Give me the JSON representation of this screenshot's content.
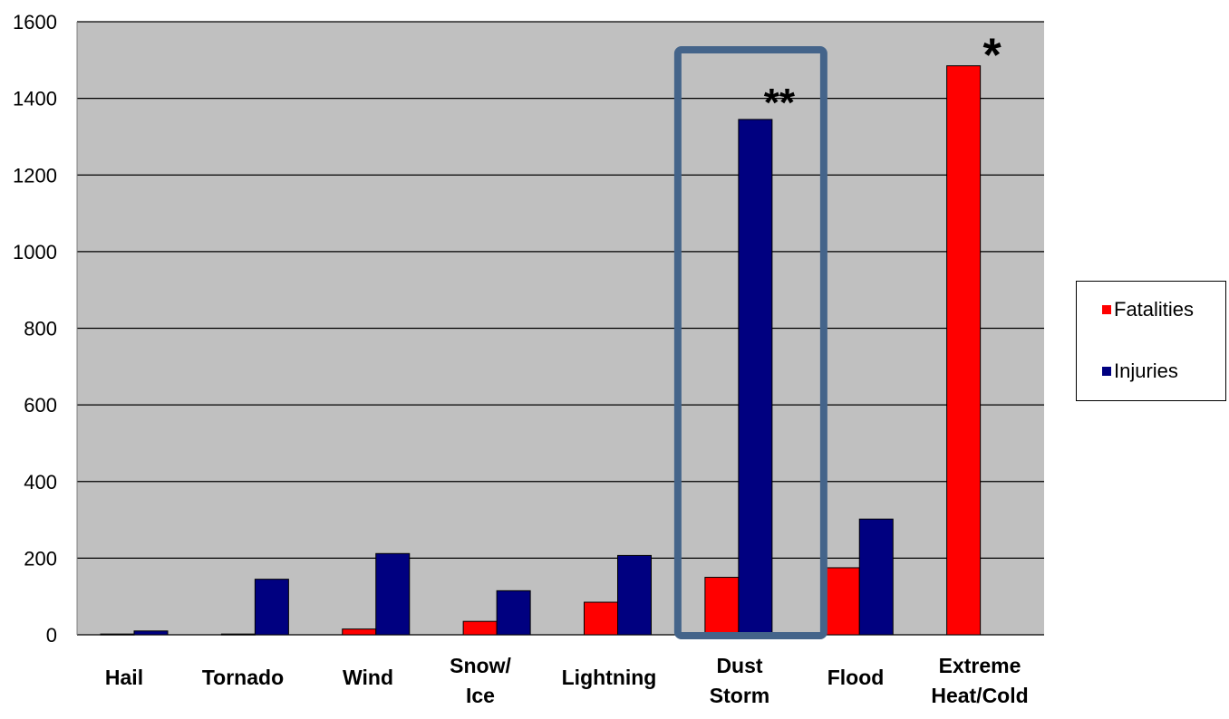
{
  "chart_data": {
    "type": "bar",
    "categories": [
      [
        "Hail"
      ],
      [
        "Tornado"
      ],
      [
        "Wind"
      ],
      [
        "Snow/",
        "Ice"
      ],
      [
        "Lightning"
      ],
      [
        "Dust",
        "Storm"
      ],
      [
        "Flood"
      ],
      [
        "Extreme",
        "Heat/Cold"
      ]
    ],
    "series": [
      {
        "name": "Fatalities",
        "color": "#ff0000",
        "values": [
          2,
          2,
          15,
          35,
          85,
          150,
          175,
          1485
        ]
      },
      {
        "name": "Injuries",
        "color": "#000080",
        "values": [
          10,
          145,
          212,
          115,
          207,
          1345,
          302,
          null
        ]
      }
    ],
    "ylim": [
      0,
      1600
    ],
    "yticks": [
      0,
      200,
      400,
      600,
      800,
      1000,
      1200,
      1400,
      1600
    ],
    "grid": true,
    "plot_background": "#c0c0c0",
    "legend_placement": "right",
    "annotations": [
      {
        "text": "**",
        "category_index": 5
      },
      {
        "text": "*",
        "category_index": 7
      }
    ],
    "highlight": {
      "category_index": 5,
      "color": "#44648a"
    },
    "xlabel": "",
    "ylabel": "",
    "title": ""
  }
}
